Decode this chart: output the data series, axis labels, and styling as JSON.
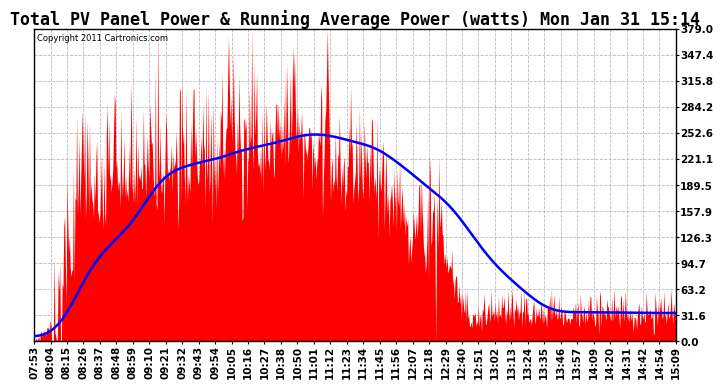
{
  "title": "Total PV Panel Power & Running Average Power (watts) Mon Jan 31 15:14",
  "copyright": "Copyright 2011 Cartronics.com",
  "yticks": [
    0.0,
    31.6,
    63.2,
    94.7,
    126.3,
    157.9,
    189.5,
    221.1,
    252.6,
    284.2,
    315.8,
    347.4,
    379.0
  ],
  "ymax": 379.0,
  "ymin": 0.0,
  "xtick_labels": [
    "07:53",
    "08:04",
    "08:15",
    "08:26",
    "08:37",
    "08:48",
    "08:59",
    "09:10",
    "09:21",
    "09:32",
    "09:43",
    "09:54",
    "10:05",
    "10:16",
    "10:27",
    "10:38",
    "10:50",
    "11:01",
    "11:12",
    "11:23",
    "11:34",
    "11:45",
    "11:56",
    "12:07",
    "12:18",
    "12:29",
    "12:40",
    "12:51",
    "13:02",
    "13:13",
    "13:24",
    "13:35",
    "13:46",
    "13:57",
    "14:09",
    "14:20",
    "14:31",
    "14:42",
    "14:54",
    "15:09"
  ],
  "fill_color": "#ff0000",
  "line_color": "#0000ff",
  "background_color": "#ffffff",
  "grid_color": "#bbbbbb",
  "title_fontsize": 12,
  "tick_fontsize": 7.5
}
